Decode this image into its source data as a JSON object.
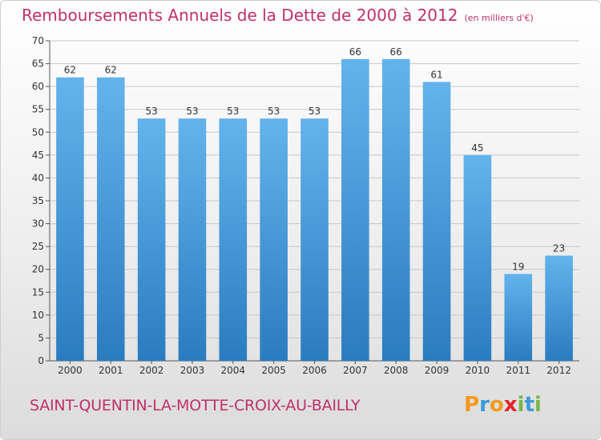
{
  "header": {
    "title": "Remboursements Annuels de la Dette de 2000 à 2012",
    "unit": "(en milliers d'€)"
  },
  "footer": {
    "commune": "SAINT-QUENTIN-LA-MOTTE-CROIX-AU-BAILLY"
  },
  "logo": {
    "letters": [
      "P",
      "r",
      "o",
      "x",
      "i",
      "t",
      "i"
    ],
    "colors": [
      "#f39a1c",
      "#3a9bd8",
      "#f39a1c",
      "#e2242b",
      "#7ab648",
      "#3a9bd8",
      "#7ab648"
    ]
  },
  "colors": {
    "bar_light": "#63b3ec",
    "bar_dark": "#2a7cc0",
    "title": "#c0306a"
  },
  "chart_data": {
    "type": "bar",
    "title": "Remboursements Annuels de la Dette de 2000 à 2012",
    "subtitle": "(en milliers d'€)",
    "categories": [
      "2000",
      "2001",
      "2002",
      "2003",
      "2004",
      "2005",
      "2006",
      "2007",
      "2008",
      "2009",
      "2010",
      "2011",
      "2012"
    ],
    "values": [
      62,
      62,
      53,
      53,
      53,
      53,
      53,
      66,
      66,
      61,
      45,
      19,
      23
    ],
    "ylim": [
      0,
      70
    ],
    "yticks": [
      0,
      5,
      10,
      15,
      20,
      25,
      30,
      35,
      40,
      45,
      50,
      55,
      60,
      65,
      70
    ],
    "grid": true,
    "data_labels": true
  }
}
